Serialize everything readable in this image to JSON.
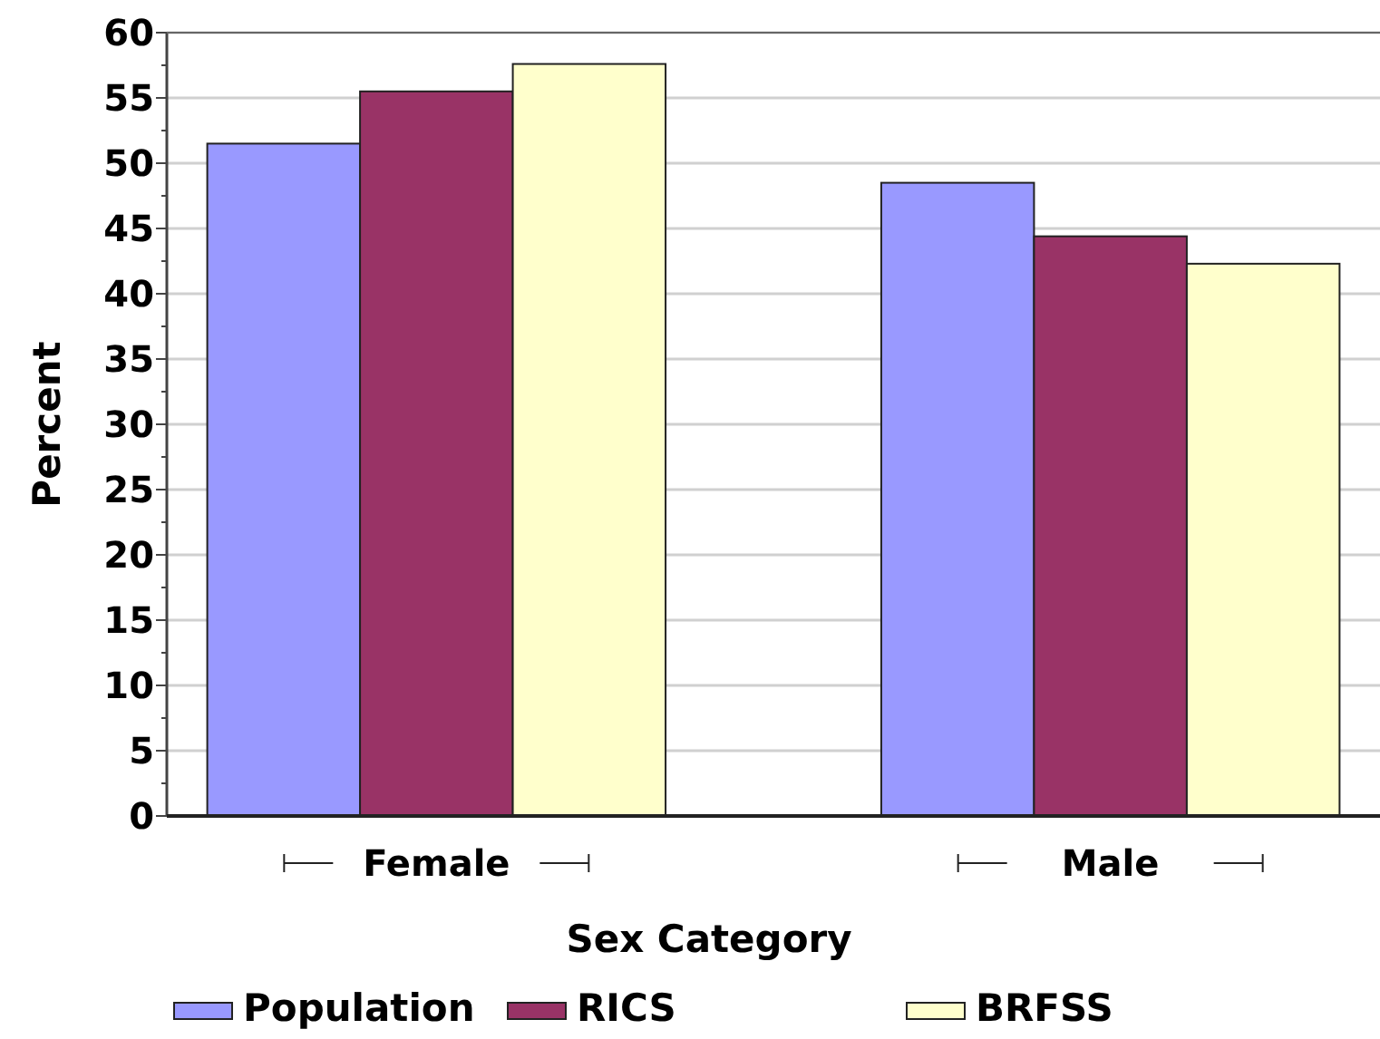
{
  "chart_data": {
    "type": "bar",
    "xlabel": "Sex Category",
    "ylabel": "Percent",
    "categories": [
      "Female",
      "Male"
    ],
    "series": [
      {
        "name": "Population",
        "color": "#9999ff",
        "values": [
          51.5,
          48.5
        ]
      },
      {
        "name": "RICS",
        "color": "#993366",
        "values": [
          55.5,
          44.4
        ]
      },
      {
        "name": "BRFSS",
        "color": "#ffffcc",
        "values": [
          57.6,
          42.3
        ]
      }
    ],
    "ylim": [
      0,
      60
    ],
    "yticks": [
      0,
      {
        "value": 2.5,
        "label": null
      },
      5,
      {
        "value": 7.5,
        "label": null
      },
      10,
      {
        "value": 12.5,
        "label": null
      },
      15,
      {
        "value": 17.5,
        "label": null
      },
      20,
      {
        "value": 22.5,
        "label": null
      },
      25,
      {
        "value": 27.5,
        "label": null
      },
      30,
      {
        "value": 32.5,
        "label": null
      },
      35,
      {
        "value": 37.5,
        "label": null
      },
      40,
      {
        "value": 42.5,
        "label": null
      },
      45,
      {
        "value": 47.5,
        "label": null
      },
      50,
      {
        "value": 52.5,
        "label": null
      },
      55,
      {
        "value": 57.5,
        "label": null
      },
      60
    ],
    "grid": "y",
    "legend": "bottom"
  }
}
